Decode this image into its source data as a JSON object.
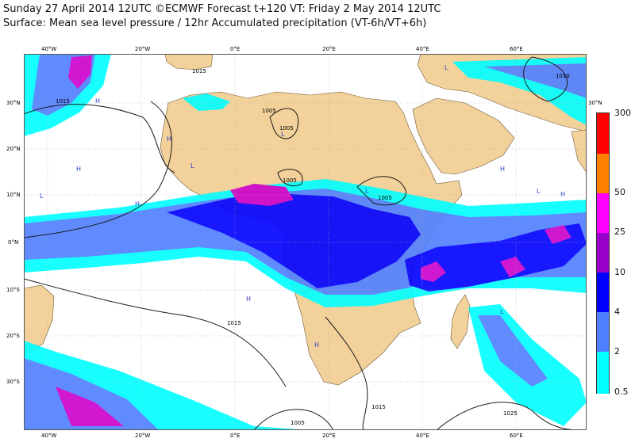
{
  "header": {
    "line1": "Sunday 27 April 2014 12UTC ©ECMWF Forecast t+120 VT: Friday 2 May 2014 12UTC",
    "line2": "Surface: Mean sea level pressure / 12hr Accumulated precipitation (VT-6h/VT+6h)"
  },
  "map": {
    "colors": {
      "ocean": "#ffffff",
      "land": "#f3d19a",
      "gridline": "#a8a8a8",
      "isobar": "#1a1a1a"
    },
    "lon_labels": [
      "40°W",
      "20°W",
      "0°E",
      "20°E",
      "40°E",
      "60°E"
    ],
    "lat_labels": [
      "30°N",
      "20°N",
      "10°N",
      "0°N",
      "10°S",
      "20°S",
      "30°S"
    ],
    "isobar_labels": [
      "1015",
      "1015",
      "1005",
      "1005",
      "1005",
      "1005",
      "1010",
      "1015",
      "1015",
      "1025",
      "1005"
    ],
    "pressure_centers": [
      "H",
      "H",
      "H",
      "H",
      "H",
      "H",
      "H",
      "H",
      "L",
      "L",
      "L",
      "L",
      "L",
      "L",
      "L"
    ]
  },
  "legend": {
    "levels": [
      {
        "label": "300",
        "color": "#ff0000"
      },
      {
        "label": "50",
        "color": "#ff7f00"
      },
      {
        "label": "25",
        "color": "#ff00ff"
      },
      {
        "label": "10",
        "color": "#9900cc"
      },
      {
        "label": "4",
        "color": "#0000ff"
      },
      {
        "label": "2",
        "color": "#4f7fff"
      },
      {
        "label": "0.5",
        "color": "#00ffff"
      }
    ],
    "top_color": "#ff0000"
  }
}
